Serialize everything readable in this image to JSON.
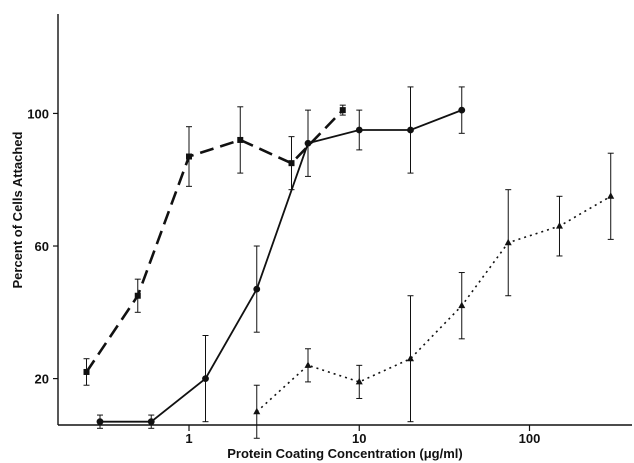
{
  "chart_data": {
    "type": "line",
    "title": "",
    "xlabel": "Protein Coating Concentration (μg/ml)",
    "ylabel": "Percent of Cells Attached",
    "x_scale": "log",
    "xlim": [
      0.17,
      400
    ],
    "ylim": [
      6,
      130
    ],
    "x_ticks": [
      1,
      10,
      100
    ],
    "x_tick_labels": [
      "1",
      "10",
      "100"
    ],
    "y_ticks": [
      20,
      60,
      100
    ],
    "y_tick_labels": [
      "20",
      "60",
      "100"
    ],
    "grid": false,
    "legend": "none",
    "series": [
      {
        "style": "dashed",
        "marker": "square",
        "points": [
          {
            "x": 0.25,
            "y": 22,
            "err": 4
          },
          {
            "x": 0.5,
            "y": 45,
            "err": 5
          },
          {
            "x": 1,
            "y": 87,
            "err": 9
          },
          {
            "x": 2,
            "y": 92,
            "err": 10
          },
          {
            "x": 4,
            "y": 85,
            "err": 8
          },
          {
            "x": 8,
            "y": 101,
            "err": 1.5
          }
        ]
      },
      {
        "style": "solid",
        "marker": "circle",
        "points": [
          {
            "x": 0.3,
            "y": 7,
            "err": 2
          },
          {
            "x": 0.6,
            "y": 7,
            "err": 2
          },
          {
            "x": 1.25,
            "y": 20,
            "err": 13
          },
          {
            "x": 2.5,
            "y": 47,
            "err": 13
          },
          {
            "x": 5,
            "y": 91,
            "err": 10
          },
          {
            "x": 10,
            "y": 95,
            "err": 6
          },
          {
            "x": 20,
            "y": 95,
            "err": 13
          },
          {
            "x": 40,
            "y": 101,
            "err": 7
          }
        ]
      },
      {
        "style": "dotted",
        "marker": "triangle",
        "points": [
          {
            "x": 2.5,
            "y": 10,
            "err": 8
          },
          {
            "x": 5,
            "y": 24,
            "err": 5
          },
          {
            "x": 10,
            "y": 19,
            "err": 5
          },
          {
            "x": 20,
            "y": 26,
            "err": 19
          },
          {
            "x": 40,
            "y": 42,
            "err": 10
          },
          {
            "x": 75,
            "y": 61,
            "err": 16
          },
          {
            "x": 150,
            "y": 66,
            "err": 9
          },
          {
            "x": 300,
            "y": 75,
            "err": 13
          }
        ]
      }
    ]
  }
}
